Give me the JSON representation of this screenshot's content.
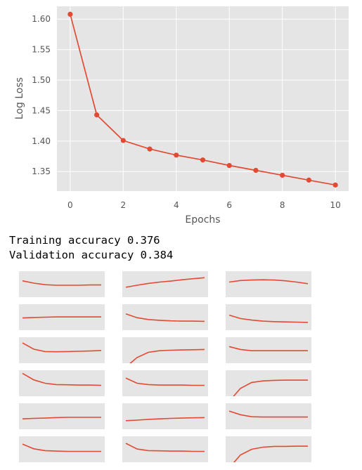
{
  "chart_data": [
    {
      "type": "line",
      "title": "",
      "xlabel": "Epochs",
      "ylabel": "Log Loss",
      "xlim": [
        -0.5,
        10.5
      ],
      "ylim": [
        1.318,
        1.621
      ],
      "xticks": [
        0,
        2,
        4,
        6,
        8,
        10
      ],
      "xtick_labels": [
        "0",
        "2",
        "4",
        "6",
        "8",
        "10"
      ],
      "yticks": [
        1.35,
        1.4,
        1.45,
        1.5,
        1.55,
        1.6
      ],
      "ytick_labels": [
        "1.35",
        "1.40",
        "1.45",
        "1.50",
        "1.55",
        "1.60"
      ],
      "grid": true,
      "series": [
        {
          "x": [
            0,
            1,
            2,
            3,
            4,
            5,
            6,
            7,
            8,
            9,
            10
          ],
          "y": [
            1.608,
            1.443,
            1.401,
            1.387,
            1.377,
            1.369,
            1.36,
            1.352,
            1.344,
            1.336,
            1.328
          ],
          "color": "#E24A33",
          "marker": "circle"
        }
      ]
    },
    {
      "type": "line",
      "title": "",
      "grid": false,
      "axes": "off",
      "series_curves": [
        [
          0.37,
          0.46,
          0.52,
          0.54,
          0.54,
          0.54,
          0.53,
          0.53
        ],
        [
          0.62,
          0.54,
          0.47,
          0.42,
          0.38,
          0.33,
          0.29,
          0.25
        ],
        [
          0.42,
          0.36,
          0.34,
          0.33,
          0.34,
          0.37,
          0.42,
          0.48
        ],
        [
          0.53,
          0.51,
          0.5,
          0.49,
          0.49,
          0.49,
          0.49,
          0.49
        ],
        [
          0.37,
          0.52,
          0.59,
          0.62,
          0.64,
          0.65,
          0.65,
          0.66
        ],
        [
          0.42,
          0.55,
          0.61,
          0.65,
          0.67,
          0.68,
          0.69,
          0.7
        ],
        [
          0.22,
          0.46,
          0.55,
          0.56,
          0.55,
          0.54,
          0.53,
          0.51
        ],
        [
          1.15,
          0.78,
          0.58,
          0.52,
          0.5,
          0.49,
          0.48,
          0.47
        ],
        [
          0.36,
          0.47,
          0.52,
          0.52,
          0.52,
          0.52,
          0.52,
          0.52
        ],
        [
          0.12,
          0.37,
          0.5,
          0.55,
          0.56,
          0.57,
          0.57,
          0.58
        ],
        [
          0.3,
          0.5,
          0.55,
          0.57,
          0.57,
          0.57,
          0.58,
          0.58
        ],
        [
          1.2,
          0.7,
          0.47,
          0.41,
          0.39,
          0.38,
          0.38,
          0.38
        ],
        [
          0.6,
          0.58,
          0.57,
          0.55,
          0.54,
          0.54,
          0.54,
          0.54
        ],
        [
          0.67,
          0.65,
          0.62,
          0.6,
          0.58,
          0.57,
          0.56,
          0.55
        ],
        [
          0.3,
          0.44,
          0.52,
          0.53,
          0.53,
          0.53,
          0.53,
          0.53
        ],
        [
          0.3,
          0.48,
          0.55,
          0.57,
          0.58,
          0.58,
          0.58,
          0.58
        ],
        [
          0.27,
          0.49,
          0.55,
          0.56,
          0.57,
          0.57,
          0.58,
          0.58
        ],
        [
          1.22,
          0.72,
          0.5,
          0.42,
          0.39,
          0.39,
          0.38,
          0.38
        ]
      ]
    }
  ],
  "output": {
    "training_accuracy": "Training accuracy 0.376",
    "validation_accuracy": "Validation accuracy 0.384"
  },
  "colors": {
    "panel_bg": "#E5E5E5",
    "grid": "#FFFFFF",
    "line": "#E24A33",
    "text": "#555555"
  }
}
